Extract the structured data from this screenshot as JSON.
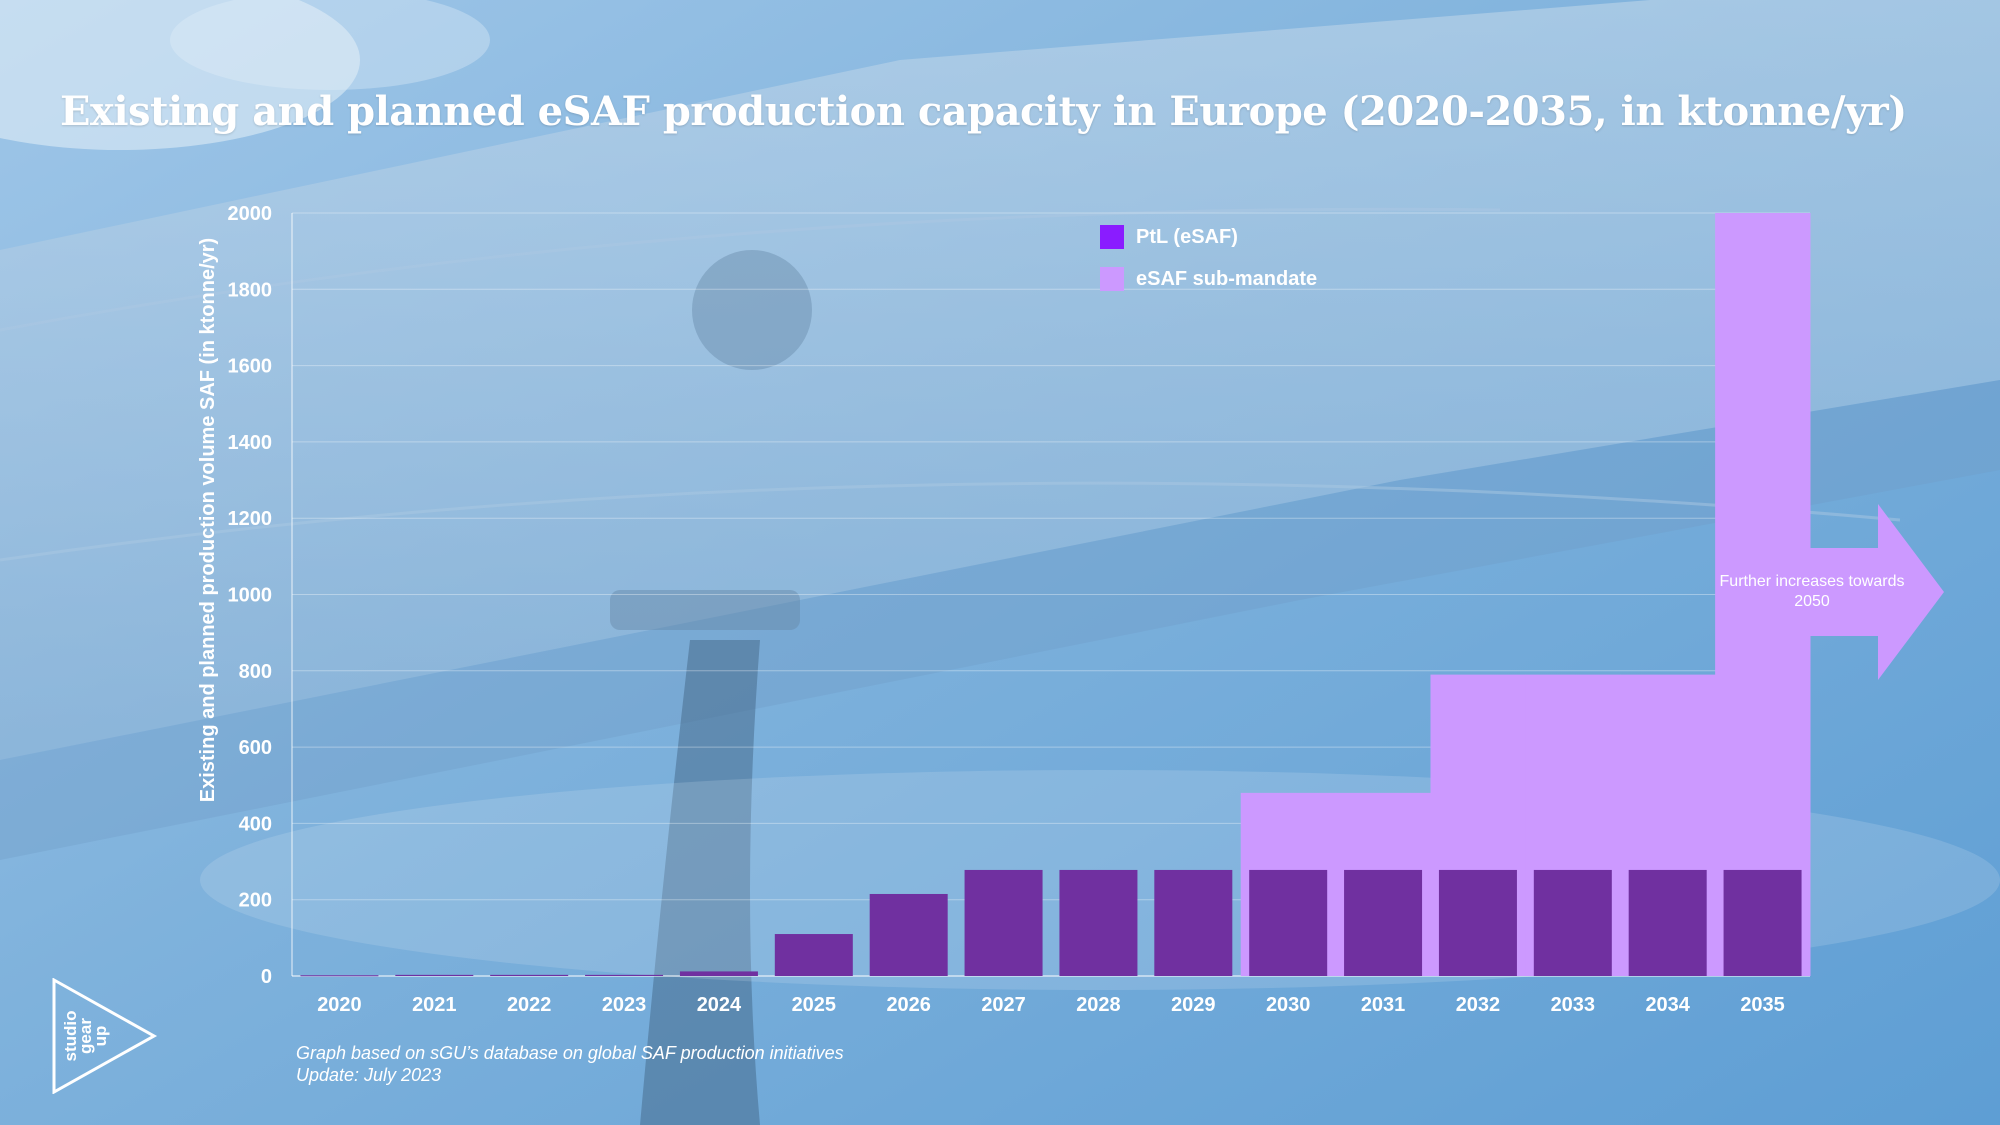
{
  "title": "Existing and planned eSAF production capacity in Europe (2020-2035, in ktonne/yr)",
  "chart_data": {
    "type": "bar",
    "title": "Existing and planned eSAF production capacity in Europe (2020-2035, in ktonne/yr)",
    "xlabel": "",
    "ylabel": "Existing and planned production volume SAF (in ktonne/yr)",
    "categories": [
      "2020",
      "2021",
      "2022",
      "2023",
      "2024",
      "2025",
      "2026",
      "2027",
      "2028",
      "2029",
      "2030",
      "2031",
      "2032",
      "2033",
      "2034",
      "2035"
    ],
    "series": [
      {
        "name": "PtL (eSAF)",
        "values": [
          2,
          3,
          3,
          3,
          12,
          110,
          215,
          278,
          278,
          278,
          278,
          278,
          278,
          278,
          278,
          278
        ]
      },
      {
        "name": "eSAF sub-mandate",
        "values": [
          0,
          0,
          0,
          0,
          0,
          0,
          0,
          0,
          0,
          0,
          480,
          480,
          790,
          790,
          790,
          2000
        ]
      }
    ],
    "yticks": [
      0,
      200,
      400,
      600,
      800,
      1000,
      1200,
      1400,
      1600,
      1800,
      2000
    ],
    "ylim": [
      0,
      2000
    ],
    "grid": true,
    "legend_position": "top-center"
  },
  "colors": {
    "ptl": "#7030a0",
    "ptl_legend": "#8a1cff",
    "submandate": "#cc99ff"
  },
  "annotation": "Further increases towards 2050",
  "source_line1": "Graph based on sGU’s database on global SAF production initiatives",
  "source_line2": "Update: July 2023",
  "logo_text": "studio gear up"
}
